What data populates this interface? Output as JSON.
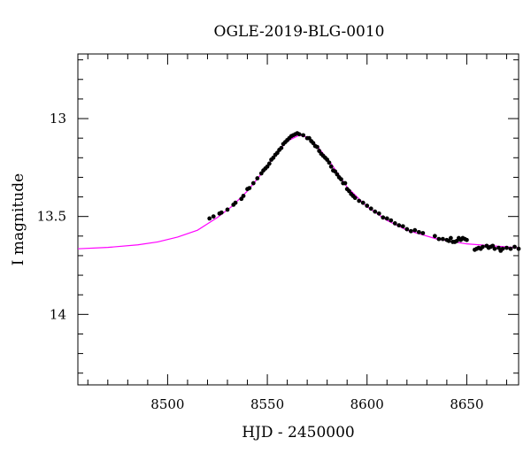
{
  "chart_data": {
    "type": "scatter",
    "title": "OGLE-2019-BLG-0010",
    "xlabel": "HJD - 2450000",
    "ylabel": "I magnitude",
    "xlim": [
      8455,
      8676
    ],
    "ylim": [
      14.36,
      12.67
    ],
    "y_inverted": true,
    "x_ticks_major": [
      8500,
      8550,
      8600,
      8650
    ],
    "x_ticks_major_labels": [
      "8500",
      "8550",
      "8600",
      "8650"
    ],
    "x_tick_minor_step": 10,
    "y_ticks_major": [
      13,
      13.5,
      14
    ],
    "y_ticks_major_labels": [
      "13",
      "13.5",
      "14"
    ],
    "y_tick_minor_step": 0.1,
    "grid": false,
    "legend": "none",
    "series": [
      {
        "type": "line",
        "color": "#ff00ff",
        "points": [
          [
            8455,
            13.665
          ],
          [
            8470,
            13.658
          ],
          [
            8485,
            13.645
          ],
          [
            8495,
            13.63
          ],
          [
            8505,
            13.605
          ],
          [
            8515,
            13.57
          ],
          [
            8525,
            13.505
          ],
          [
            8532,
            13.45
          ],
          [
            8540,
            13.37
          ],
          [
            8548,
            13.27
          ],
          [
            8555,
            13.17
          ],
          [
            8560,
            13.115
          ],
          [
            8566,
            13.085
          ],
          [
            8570,
            13.095
          ],
          [
            8575,
            13.14
          ],
          [
            8582,
            13.23
          ],
          [
            8590,
            13.35
          ],
          [
            8600,
            13.45
          ],
          [
            8610,
            13.52
          ],
          [
            8620,
            13.57
          ],
          [
            8635,
            13.615
          ],
          [
            8650,
            13.64
          ],
          [
            8676,
            13.66
          ]
        ]
      },
      {
        "type": "scatter",
        "color": "#000000",
        "points": [
          [
            8521,
            13.51
          ],
          [
            8523,
            13.5
          ],
          [
            8526,
            13.485
          ],
          [
            8527,
            13.48
          ],
          [
            8530,
            13.465
          ],
          [
            8533,
            13.44
          ],
          [
            8534,
            13.43
          ],
          [
            8537,
            13.41
          ],
          [
            8538,
            13.395
          ],
          [
            8540,
            13.36
          ],
          [
            8541,
            13.355
          ],
          [
            8543,
            13.33
          ],
          [
            8545,
            13.305
          ],
          [
            8547,
            13.28
          ],
          [
            8548,
            13.265
          ],
          [
            8549,
            13.255
          ],
          [
            8550,
            13.245
          ],
          [
            8551,
            13.23
          ],
          [
            8552,
            13.21
          ],
          [
            8553,
            13.2
          ],
          [
            8554,
            13.185
          ],
          [
            8555,
            13.175
          ],
          [
            8556,
            13.16
          ],
          [
            8557,
            13.15
          ],
          [
            8558,
            13.13
          ],
          [
            8559,
            13.12
          ],
          [
            8560,
            13.11
          ],
          [
            8561,
            13.1
          ],
          [
            8562,
            13.09
          ],
          [
            8563,
            13.085
          ],
          [
            8564,
            13.08
          ],
          [
            8565,
            13.075
          ],
          [
            8566,
            13.08
          ],
          [
            8568,
            13.085
          ],
          [
            8570,
            13.1
          ],
          [
            8571,
            13.1
          ],
          [
            8572,
            13.115
          ],
          [
            8573,
            13.125
          ],
          [
            8574,
            13.14
          ],
          [
            8575,
            13.145
          ],
          [
            8576,
            13.165
          ],
          [
            8577,
            13.18
          ],
          [
            8578,
            13.19
          ],
          [
            8579,
            13.2
          ],
          [
            8580,
            13.21
          ],
          [
            8581,
            13.225
          ],
          [
            8582,
            13.245
          ],
          [
            8583,
            13.265
          ],
          [
            8584,
            13.27
          ],
          [
            8585,
            13.285
          ],
          [
            8586,
            13.3
          ],
          [
            8587,
            13.31
          ],
          [
            8588,
            13.33
          ],
          [
            8589,
            13.33
          ],
          [
            8590,
            13.36
          ],
          [
            8591,
            13.37
          ],
          [
            8592,
            13.385
          ],
          [
            8593,
            13.395
          ],
          [
            8594,
            13.405
          ],
          [
            8596,
            13.42
          ],
          [
            8598,
            13.43
          ],
          [
            8600,
            13.445
          ],
          [
            8602,
            13.46
          ],
          [
            8604,
            13.475
          ],
          [
            8606,
            13.485
          ],
          [
            8608,
            13.505
          ],
          [
            8610,
            13.51
          ],
          [
            8612,
            13.52
          ],
          [
            8614,
            13.535
          ],
          [
            8616,
            13.545
          ],
          [
            8618,
            13.55
          ],
          [
            8620,
            13.565
          ],
          [
            8622,
            13.575
          ],
          [
            8624,
            13.57
          ],
          [
            8626,
            13.58
          ],
          [
            8628,
            13.585
          ],
          [
            8634,
            13.6
          ],
          [
            8636,
            13.615
          ],
          [
            8638,
            13.615
          ],
          [
            8640,
            13.62
          ],
          [
            8641,
            13.625
          ],
          [
            8642,
            13.61
          ],
          [
            8643,
            13.63
          ],
          [
            8644,
            13.63
          ],
          [
            8645,
            13.625
          ],
          [
            8646,
            13.61
          ],
          [
            8647,
            13.62
          ],
          [
            8648,
            13.61
          ],
          [
            8649,
            13.615
          ],
          [
            8650,
            13.62
          ],
          [
            8654,
            13.67
          ],
          [
            8655,
            13.665
          ],
          [
            8656,
            13.66
          ],
          [
            8657,
            13.665
          ],
          [
            8658,
            13.655
          ],
          [
            8660,
            13.65
          ],
          [
            8661,
            13.66
          ],
          [
            8662,
            13.655
          ],
          [
            8663,
            13.65
          ],
          [
            8664,
            13.665
          ],
          [
            8666,
            13.66
          ],
          [
            8667,
            13.675
          ],
          [
            8668,
            13.665
          ],
          [
            8670,
            13.66
          ],
          [
            8672,
            13.665
          ],
          [
            8674,
            13.655
          ],
          [
            8676,
            13.665
          ]
        ]
      }
    ]
  }
}
